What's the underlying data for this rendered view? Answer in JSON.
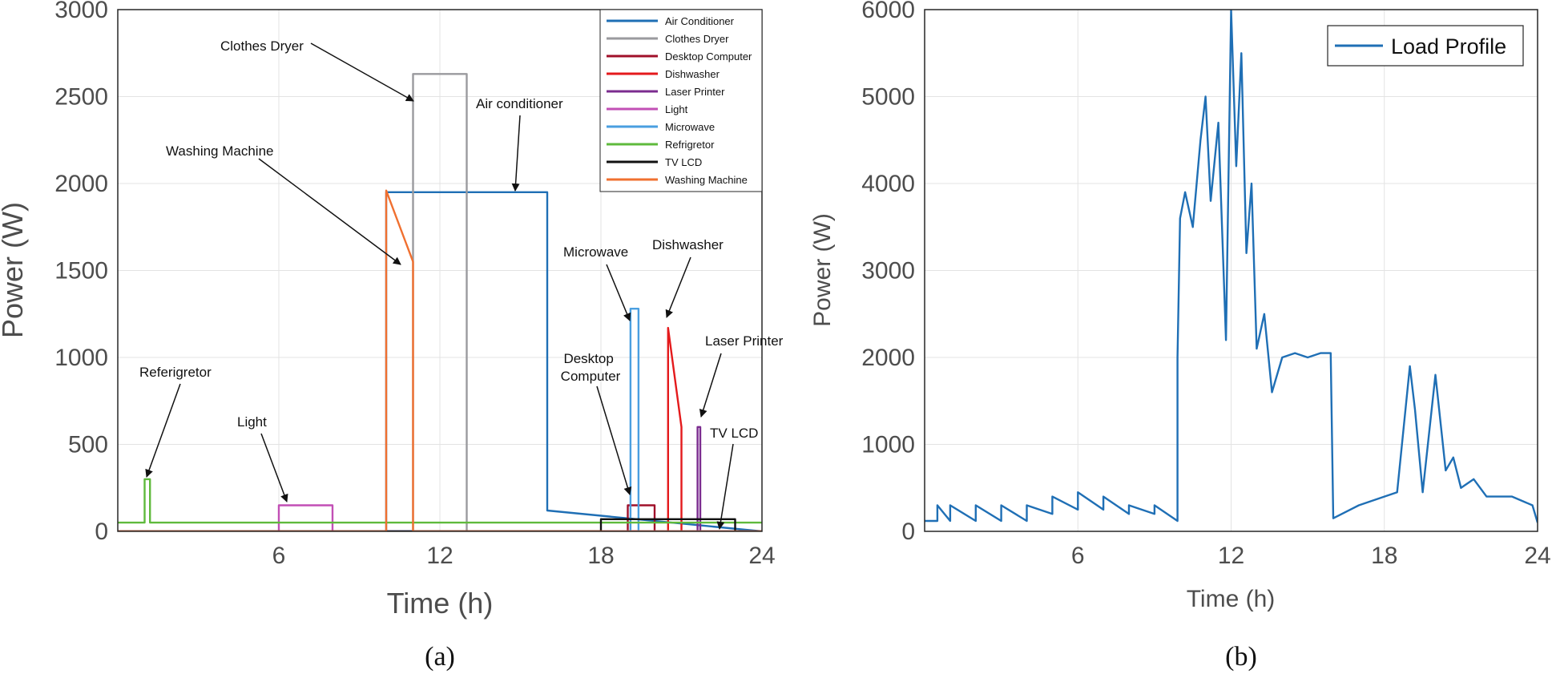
{
  "chart_data": [
    {
      "type": "line",
      "panel_label": "(a)",
      "xlabel": "Time (h)",
      "ylabel": "Power (W)",
      "xlim": [
        0,
        24
      ],
      "ylim": [
        0,
        3000
      ],
      "xticks": [
        6,
        12,
        18,
        24
      ],
      "yticks": [
        0,
        500,
        1000,
        1500,
        2000,
        2500,
        3000
      ],
      "grid": true,
      "legend_position": "top-right",
      "series": [
        {
          "name": "Air Conditioner",
          "color": "#1f6fb5",
          "x": [
            0,
            10.0,
            10.0,
            16.0,
            16.0,
            24
          ],
          "y": [
            0,
            0,
            1950,
            1950,
            120,
            0
          ]
        },
        {
          "name": "Clothes Dryer",
          "color": "#9a9a9e",
          "x": [
            0,
            11.0,
            11.0,
            13.0,
            13.0,
            24
          ],
          "y": [
            0,
            0,
            2630,
            2630,
            0,
            0
          ]
        },
        {
          "name": "Desktop Computer",
          "color": "#a0102a",
          "x": [
            0,
            19.0,
            19.0,
            20.0,
            20.0,
            24
          ],
          "y": [
            0,
            0,
            150,
            150,
            0,
            0
          ]
        },
        {
          "name": "Dishwasher",
          "color": "#e41a1c",
          "x": [
            0,
            20.5,
            20.5,
            21.0,
            21.0,
            24
          ],
          "y": [
            0,
            0,
            1170,
            600,
            0,
            0
          ]
        },
        {
          "name": "Laser Printer",
          "color": "#7b2c8f",
          "x": [
            0,
            21.6,
            21.6,
            21.7,
            21.7,
            24
          ],
          "y": [
            0,
            0,
            600,
            600,
            0,
            0
          ]
        },
        {
          "name": "Light",
          "color": "#c24fb5",
          "x": [
            0,
            6.0,
            6.0,
            8.0,
            8.0,
            24
          ],
          "y": [
            0,
            0,
            150,
            150,
            0,
            0
          ]
        },
        {
          "name": "Microwave",
          "color": "#4a9fe0",
          "x": [
            0,
            19.1,
            19.1,
            19.4,
            19.4,
            24
          ],
          "y": [
            0,
            0,
            1280,
            1280,
            0,
            0
          ]
        },
        {
          "name": "Refrigretor",
          "color": "#5fba3c",
          "x": [
            0,
            1,
            1,
            1.2,
            1.2,
            24
          ],
          "y": [
            50,
            50,
            300,
            300,
            50,
            50
          ]
        },
        {
          "name": "TV LCD",
          "color": "#111111",
          "x": [
            0,
            18.0,
            18.0,
            23.0,
            23.0,
            24
          ],
          "y": [
            0,
            0,
            70,
            70,
            0,
            0
          ]
        },
        {
          "name": "Washing Machine",
          "color": "#f07030",
          "x": [
            0,
            10.0,
            10.0,
            11.0,
            11.0,
            24
          ],
          "y": [
            0,
            0,
            1960,
            1550,
            0,
            0
          ]
        }
      ],
      "annotations": [
        "Clothes Dryer",
        "Air conditioner",
        "Washing Machine",
        "Microwave",
        "Dishwasher",
        "Desktop\nComputer",
        "Laser Printer",
        "Referigretor",
        "Light",
        "TV LCD"
      ]
    },
    {
      "type": "line",
      "panel_label": "(b)",
      "xlabel": "Time  (h)",
      "ylabel": "Power (W)",
      "xlim": [
        0,
        24
      ],
      "ylim": [
        0,
        6000
      ],
      "xticks": [
        6,
        12,
        18,
        24
      ],
      "yticks": [
        0,
        1000,
        2000,
        3000,
        4000,
        5000,
        6000
      ],
      "grid": true,
      "legend_position": "top-right",
      "series": [
        {
          "name": "Load Profile",
          "color": "#1f6fb5",
          "x": [
            0,
            0.5,
            0.5,
            1,
            1,
            2,
            2,
            3,
            3,
            4,
            4,
            5,
            5,
            6,
            6,
            7,
            7,
            8,
            8,
            9,
            9,
            9.9,
            9.9,
            10,
            10.2,
            10.5,
            10.8,
            11,
            11.2,
            11.5,
            11.8,
            12,
            12.2,
            12.4,
            12.6,
            12.8,
            13,
            13.3,
            13.6,
            14,
            14.5,
            15,
            15.5,
            15.9,
            16,
            17,
            18,
            18.5,
            19,
            19.2,
            19.5,
            20,
            20.4,
            20.7,
            21,
            21.5,
            22,
            23,
            23.8,
            24
          ],
          "y": [
            120,
            120,
            300,
            120,
            300,
            120,
            300,
            120,
            300,
            120,
            300,
            200,
            400,
            250,
            450,
            250,
            400,
            200,
            300,
            200,
            300,
            120,
            2000,
            3600,
            3900,
            3500,
            4500,
            5000,
            3800,
            4700,
            2200,
            6000,
            4200,
            5500,
            3200,
            4000,
            2100,
            2500,
            1600,
            2000,
            2050,
            2000,
            2050,
            2050,
            150,
            300,
            400,
            450,
            1900,
            1400,
            450,
            1800,
            700,
            850,
            500,
            600,
            400,
            400,
            300,
            100
          ]
        }
      ]
    }
  ]
}
